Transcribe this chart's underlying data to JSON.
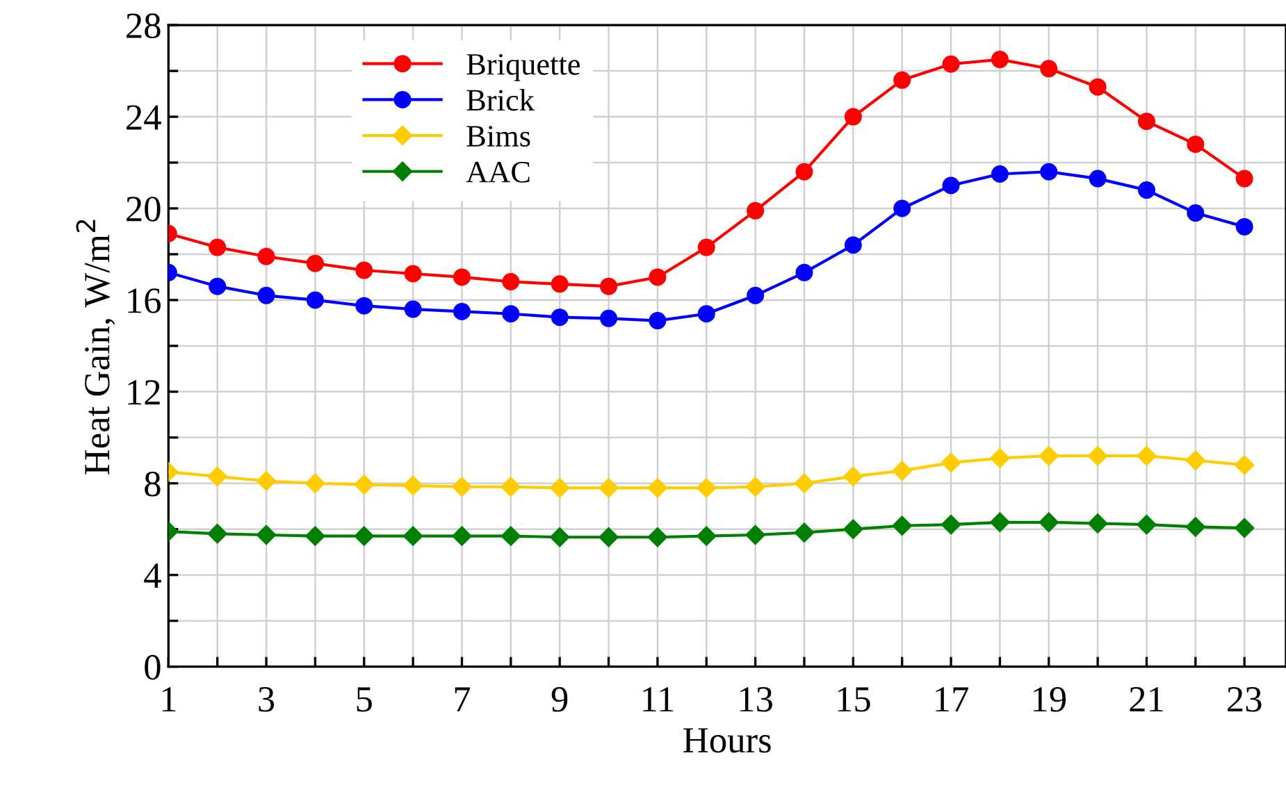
{
  "chart_data": {
    "type": "line",
    "xlabel": "Hours",
    "ylabel": "Heat Gain, W/m$^{2}$",
    "x": [
      1,
      2,
      3,
      4,
      5,
      6,
      7,
      8,
      9,
      10,
      11,
      12,
      13,
      14,
      15,
      16,
      17,
      18,
      19,
      20,
      21,
      22,
      23
    ],
    "series": [
      {
        "name": "Briquette",
        "color": "#ff0000",
        "marker": "circle",
        "values": [
          18.9,
          18.3,
          17.9,
          17.6,
          17.3,
          17.15,
          17.0,
          16.8,
          16.7,
          16.6,
          17.0,
          18.3,
          19.9,
          21.6,
          24.0,
          25.6,
          26.3,
          26.5,
          26.1,
          25.3,
          23.8,
          22.8,
          21.3
        ]
      },
      {
        "name": "Brick",
        "color": "#0000ff",
        "marker": "circle",
        "values": [
          17.2,
          16.6,
          16.2,
          16.0,
          15.75,
          15.6,
          15.5,
          15.4,
          15.25,
          15.2,
          15.1,
          15.4,
          16.2,
          17.2,
          18.4,
          20.0,
          21.0,
          21.5,
          21.6,
          21.3,
          20.8,
          19.8,
          19.2
        ]
      },
      {
        "name": "Bims",
        "color": "#ffcc00",
        "marker": "diamond",
        "values": [
          8.5,
          8.3,
          8.1,
          8.0,
          7.95,
          7.9,
          7.85,
          7.85,
          7.8,
          7.8,
          7.8,
          7.8,
          7.85,
          8.0,
          8.3,
          8.55,
          8.9,
          9.1,
          9.2,
          9.2,
          9.2,
          9.0,
          8.8
        ]
      },
      {
        "name": "AAC",
        "color": "#008000",
        "marker": "diamond",
        "values": [
          5.9,
          5.8,
          5.75,
          5.7,
          5.7,
          5.7,
          5.7,
          5.7,
          5.65,
          5.65,
          5.65,
          5.7,
          5.75,
          5.85,
          6.0,
          6.15,
          6.2,
          6.3,
          6.3,
          6.25,
          6.2,
          6.1,
          6.05
        ]
      }
    ],
    "xlim": [
      1,
      23.85
    ],
    "xticks": [
      1,
      {
        "value": 2,
        "label": null
      },
      3,
      {
        "value": 4,
        "label": null
      },
      5,
      {
        "value": 6,
        "label": null
      },
      7,
      {
        "value": 8,
        "label": null
      },
      9,
      {
        "value": 10,
        "label": null
      },
      11,
      {
        "value": 12,
        "label": null
      },
      13,
      {
        "value": 14,
        "label": null
      },
      15,
      {
        "value": 16,
        "label": null
      },
      17,
      {
        "value": 18,
        "label": null
      },
      19,
      {
        "value": 20,
        "label": null
      },
      21,
      {
        "value": 22,
        "label": null
      },
      23
    ],
    "ylim": [
      0,
      28
    ],
    "yticks": [
      0,
      {
        "value": 2,
        "label": null
      },
      4,
      {
        "value": 6,
        "label": null
      },
      8,
      {
        "value": 10,
        "label": null
      },
      12,
      {
        "value": 14,
        "label": null
      },
      16,
      {
        "value": 18,
        "label": null
      },
      20,
      {
        "value": 22,
        "label": null
      },
      24,
      {
        "value": 26,
        "label": null
      },
      28
    ],
    "grid": true,
    "legend": "top left",
    "line_style": "solid"
  }
}
